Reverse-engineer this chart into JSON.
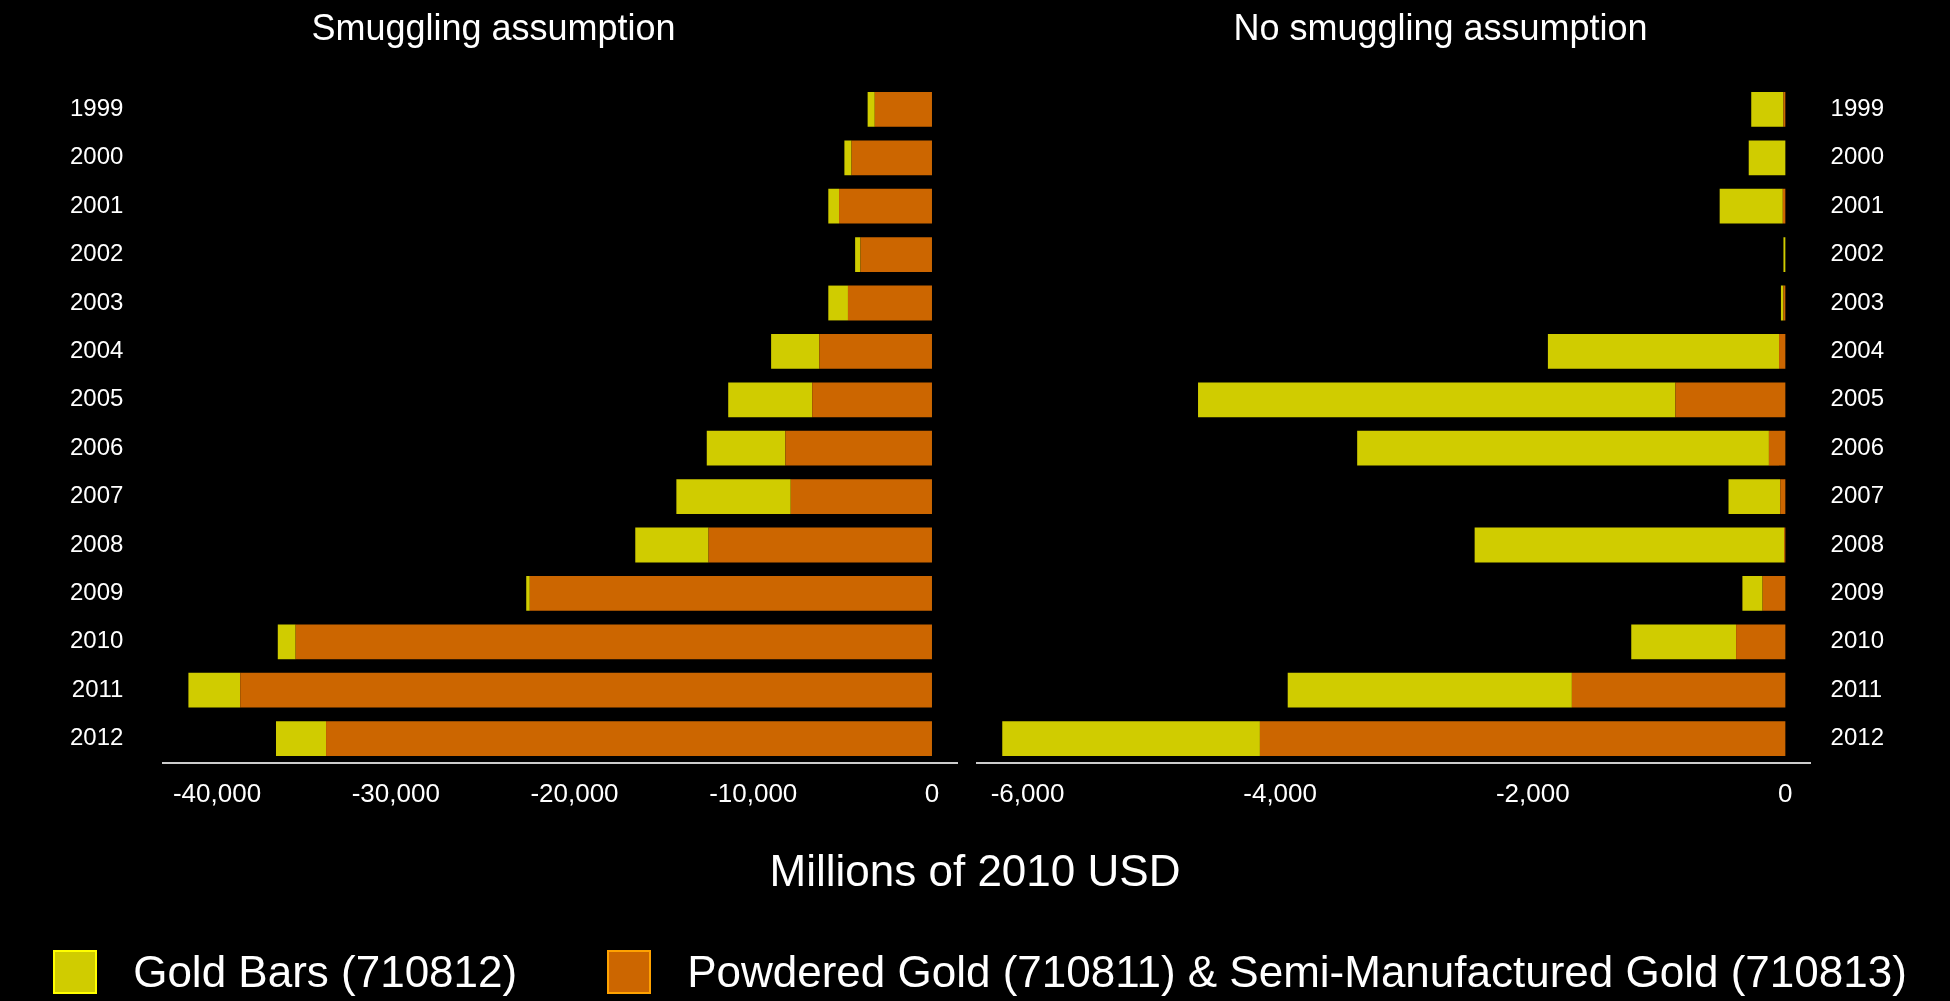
{
  "chart_data": [
    {
      "type": "bar",
      "title": "Smuggling assumption",
      "xlabel": "Millions of 2010 USD",
      "orientation": "horizontal",
      "stacked": true,
      "legend": "bottom",
      "grid": false,
      "categories": [
        "1999",
        "2000",
        "2001",
        "2002",
        "2003",
        "2004",
        "2005",
        "2006",
        "2007",
        "2008",
        "2009",
        "2010",
        "2011",
        "2012"
      ],
      "series": [
        {
          "name": "Powdered Gold (710811) & Semi-Manufactured Gold (710813)",
          "color": "#cc6600",
          "values": [
            -3200,
            -4500,
            -5200,
            -4000,
            -4700,
            -6300,
            -6700,
            -8200,
            -7900,
            -12500,
            -22500,
            -35600,
            -38700,
            -33900
          ]
        },
        {
          "name": "Gold Bars (710812)",
          "color": "#d0cc00",
          "values": [
            -400,
            -400,
            -600,
            -300,
            -1100,
            -2700,
            -4700,
            -4400,
            -6400,
            -4100,
            -200,
            -1000,
            -2900,
            -2800
          ]
        }
      ],
      "xlim": [
        -43000,
        1400
      ],
      "xticks": [
        {
          "value": -40000,
          "label": "-40,000"
        },
        {
          "value": -30000,
          "label": "-30,000"
        },
        {
          "value": -20000,
          "label": "-20,000"
        },
        {
          "value": -10000,
          "label": "-10,000"
        },
        0
      ]
    },
    {
      "type": "bar",
      "title": "No smuggling assumption",
      "orientation": "horizontal",
      "stacked": true,
      "grid": false,
      "categories": [
        "1999",
        "2000",
        "2001",
        "2002",
        "2003",
        "2004",
        "2005",
        "2006",
        "2007",
        "2008",
        "2009",
        "2010",
        "2011",
        "2012"
      ],
      "series": [
        {
          "color": "#cc6600",
          "values": [
            -15,
            null,
            -20,
            null,
            -15,
            -50,
            -870,
            -130,
            -40,
            -10,
            -180,
            -390,
            -1690,
            -4160
          ]
        },
        {
          "color": "#d0cc00",
          "values": [
            -255,
            -290,
            -500,
            -15,
            -20,
            -1830,
            -3780,
            -3260,
            -410,
            -2450,
            -160,
            -830,
            -2250,
            -2040
          ]
        }
      ],
      "xlim": [
        -6400,
        200
      ],
      "xticks": [
        {
          "value": -6000,
          "label": "-6,000"
        },
        {
          "value": -4000,
          "label": "-4,000"
        },
        {
          "value": -2000,
          "label": "-2,000"
        },
        0
      ]
    }
  ]
}
